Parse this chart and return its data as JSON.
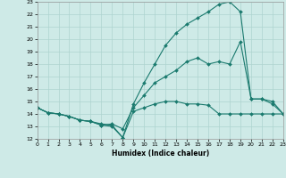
{
  "xlabel": "Humidex (Indice chaleur)",
  "xlim": [
    0,
    23
  ],
  "ylim": [
    12,
    23
  ],
  "xticks": [
    0,
    1,
    2,
    3,
    4,
    5,
    6,
    7,
    8,
    9,
    10,
    11,
    12,
    13,
    14,
    15,
    16,
    17,
    18,
    19,
    20,
    21,
    22,
    23
  ],
  "yticks": [
    12,
    13,
    14,
    15,
    16,
    17,
    18,
    19,
    20,
    21,
    22,
    23
  ],
  "bg_color": "#ceeae7",
  "grid_color": "#aed4d0",
  "line_color": "#1a7a6e",
  "line1_x": [
    0,
    1,
    2,
    3,
    4,
    5,
    6,
    7,
    8,
    9,
    10,
    11,
    12,
    13,
    14,
    15,
    16,
    17,
    18,
    19,
    20,
    21,
    22,
    23
  ],
  "line1_y": [
    14.5,
    14.1,
    14.0,
    13.8,
    13.5,
    13.4,
    13.2,
    13.1,
    12.1,
    14.2,
    14.5,
    14.8,
    15.0,
    15.0,
    14.8,
    14.8,
    14.7,
    14.0,
    14.0,
    14.0,
    14.0,
    14.0,
    14.0,
    14.0
  ],
  "line2_x": [
    0,
    1,
    2,
    3,
    4,
    5,
    6,
    7,
    8,
    9,
    10,
    11,
    12,
    13,
    14,
    15,
    16,
    17,
    18,
    19,
    20,
    21,
    22,
    23
  ],
  "line2_y": [
    14.5,
    14.1,
    14.0,
    13.8,
    13.5,
    13.4,
    13.1,
    13.2,
    12.8,
    14.5,
    15.5,
    16.5,
    17.0,
    17.5,
    18.2,
    18.5,
    18.0,
    18.2,
    18.0,
    19.8,
    15.2,
    15.2,
    15.0,
    14.0
  ],
  "line3_x": [
    0,
    1,
    2,
    3,
    4,
    5,
    6,
    7,
    8,
    9,
    10,
    11,
    12,
    13,
    14,
    15,
    16,
    17,
    18,
    19,
    20,
    21,
    22,
    23
  ],
  "line3_y": [
    14.5,
    14.1,
    14.0,
    13.8,
    13.5,
    13.4,
    13.1,
    13.0,
    12.1,
    14.8,
    16.5,
    18.0,
    19.5,
    20.5,
    21.2,
    21.7,
    22.2,
    22.8,
    23.0,
    22.2,
    15.2,
    15.2,
    14.8,
    14.0
  ]
}
